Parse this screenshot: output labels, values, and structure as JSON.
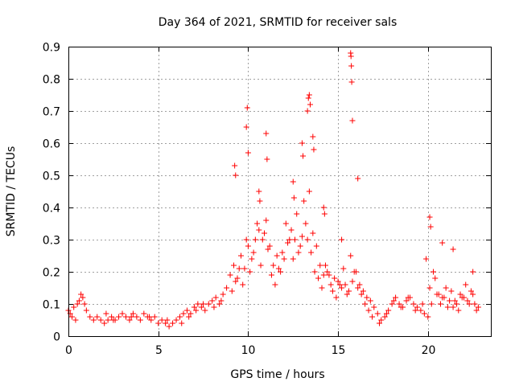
{
  "chart_data": {
    "type": "scatter",
    "title": "Day 364 of 2021, SRMTID for receiver sals",
    "xlabel": "GPS time / hours",
    "ylabel": "SRMTID / TECUs",
    "xlim": [
      0,
      23.5
    ],
    "ylim": [
      0,
      0.9
    ],
    "xticks": [
      0,
      5,
      10,
      15,
      20
    ],
    "yticks": [
      0,
      0.1,
      0.2,
      0.3,
      0.4,
      0.5,
      0.6,
      0.7,
      0.8,
      0.9
    ],
    "ytick_labels": [
      "0",
      "0.1",
      "0.2",
      "0.3",
      "0.4",
      "0.5",
      "0.6",
      "0.7",
      "0.8",
      "0.9"
    ],
    "grid": true,
    "marker": "+",
    "color": "#ff0000",
    "series": [
      {
        "name": "SRMTID",
        "x": [
          0.0,
          0.2,
          0.4,
          0.6,
          0.8,
          1.0,
          1.2,
          1.4,
          1.6,
          1.8,
          2.0,
          2.2,
          2.4,
          2.6,
          2.8,
          3.0,
          3.2,
          3.4,
          3.6,
          3.8,
          4.0,
          4.2,
          4.4,
          4.6,
          4.8,
          5.0,
          5.2,
          5.4,
          5.6,
          5.8,
          6.0,
          6.2,
          6.4,
          6.6,
          6.8,
          7.0,
          7.2,
          7.4,
          7.6,
          7.8,
          8.0,
          8.2,
          8.4,
          8.6,
          8.8,
          9.0,
          9.2,
          9.4,
          9.6,
          9.8,
          10.0,
          10.2,
          10.4,
          10.6,
          10.8,
          11.0,
          11.2,
          11.4,
          11.6,
          11.8,
          12.0,
          12.2,
          12.4,
          12.6,
          12.8,
          13.0,
          13.2,
          13.4,
          13.6,
          13.8,
          14.0,
          14.2,
          14.4,
          14.6,
          14.8,
          15.0,
          15.2,
          15.4,
          15.6,
          15.8,
          16.0,
          16.2,
          16.4,
          16.6,
          16.8,
          17.0,
          17.2,
          17.4,
          17.6,
          17.8,
          18.0,
          18.2,
          18.4,
          18.6,
          18.8,
          19.0,
          19.2,
          19.4,
          19.6,
          19.8,
          20.0,
          20.2,
          20.4,
          20.6,
          20.8,
          21.0,
          21.2,
          21.4,
          21.6,
          21.8,
          22.0,
          22.2,
          22.4,
          22.6,
          22.8,
          0.1,
          0.3,
          0.5,
          0.7,
          0.9,
          2.1,
          2.5,
          3.5,
          4.5,
          5.5,
          6.3,
          6.7,
          7.1,
          7.5,
          8.1,
          8.5,
          9.1,
          9.3,
          9.5,
          9.7,
          9.9,
          10.1,
          10.3,
          10.5,
          10.7,
          10.9,
          11.1,
          11.3,
          11.5,
          11.7,
          11.9,
          12.1,
          12.3,
          12.5,
          12.7,
          12.9,
          13.1,
          13.3,
          13.5,
          13.7,
          13.9,
          14.1,
          14.3,
          14.5,
          14.7,
          14.9,
          15.1,
          15.3,
          15.5,
          15.7,
          15.9,
          16.1,
          16.3,
          16.5,
          16.7,
          16.9,
          17.3,
          17.7,
          18.1,
          18.5,
          18.9,
          19.3,
          19.7,
          20.1,
          20.3,
          20.5,
          20.7,
          20.9,
          21.1,
          21.3,
          21.5,
          21.7,
          21.9,
          22.1,
          22.3,
          22.5,
          22.7,
          9.9,
          9.95,
          10.0,
          11.0,
          11.05,
          13.3,
          13.35,
          13.4,
          13.45,
          15.7,
          15.72,
          15.74,
          15.76,
          15.8,
          20.1,
          20.15,
          21.4,
          22.5,
          9.25,
          9.3,
          10.6,
          10.65,
          12.5,
          12.55,
          13.0,
          13.05,
          13.6,
          13.65,
          14.2,
          14.25,
          15.2,
          16.1,
          19.9,
          20.8
        ],
        "y": [
          0.08,
          0.06,
          0.05,
          0.11,
          0.12,
          0.08,
          0.06,
          0.05,
          0.06,
          0.05,
          0.04,
          0.05,
          0.06,
          0.05,
          0.06,
          0.07,
          0.06,
          0.05,
          0.07,
          0.06,
          0.05,
          0.07,
          0.06,
          0.05,
          0.06,
          0.04,
          0.05,
          0.04,
          0.03,
          0.04,
          0.05,
          0.06,
          0.07,
          0.08,
          0.07,
          0.09,
          0.1,
          0.09,
          0.08,
          0.1,
          0.11,
          0.12,
          0.1,
          0.13,
          0.15,
          0.19,
          0.22,
          0.18,
          0.25,
          0.21,
          0.28,
          0.24,
          0.3,
          0.33,
          0.3,
          0.36,
          0.28,
          0.22,
          0.25,
          0.2,
          0.24,
          0.29,
          0.33,
          0.3,
          0.26,
          0.31,
          0.35,
          0.45,
          0.32,
          0.28,
          0.22,
          0.19,
          0.2,
          0.16,
          0.18,
          0.17,
          0.15,
          0.16,
          0.14,
          0.17,
          0.2,
          0.16,
          0.14,
          0.12,
          0.11,
          0.09,
          0.07,
          0.05,
          0.06,
          0.08,
          0.1,
          0.12,
          0.1,
          0.09,
          0.11,
          0.12,
          0.1,
          0.09,
          0.08,
          0.07,
          0.06,
          0.1,
          0.18,
          0.13,
          0.12,
          0.15,
          0.11,
          0.09,
          0.1,
          0.13,
          0.12,
          0.11,
          0.14,
          0.1,
          0.09,
          0.07,
          0.09,
          0.1,
          0.13,
          0.1,
          0.07,
          0.05,
          0.06,
          0.06,
          0.05,
          0.04,
          0.06,
          0.08,
          0.1,
          0.09,
          0.11,
          0.14,
          0.17,
          0.21,
          0.16,
          0.3,
          0.2,
          0.26,
          0.35,
          0.22,
          0.32,
          0.27,
          0.19,
          0.16,
          0.21,
          0.26,
          0.35,
          0.3,
          0.24,
          0.38,
          0.28,
          0.42,
          0.3,
          0.26,
          0.2,
          0.18,
          0.15,
          0.22,
          0.19,
          0.14,
          0.12,
          0.16,
          0.21,
          0.13,
          0.25,
          0.2,
          0.15,
          0.13,
          0.1,
          0.08,
          0.06,
          0.04,
          0.07,
          0.11,
          0.09,
          0.12,
          0.08,
          0.1,
          0.15,
          0.2,
          0.13,
          0.1,
          0.12,
          0.09,
          0.14,
          0.11,
          0.08,
          0.12,
          0.16,
          0.1,
          0.13,
          0.08,
          0.65,
          0.71,
          0.57,
          0.63,
          0.55,
          0.7,
          0.74,
          0.75,
          0.72,
          0.88,
          0.87,
          0.84,
          0.79,
          0.67,
          0.37,
          0.34,
          0.27,
          0.2,
          0.53,
          0.5,
          0.45,
          0.42,
          0.48,
          0.43,
          0.6,
          0.56,
          0.62,
          0.58,
          0.4,
          0.38,
          0.3,
          0.49,
          0.24,
          0.29
        ]
      }
    ]
  }
}
